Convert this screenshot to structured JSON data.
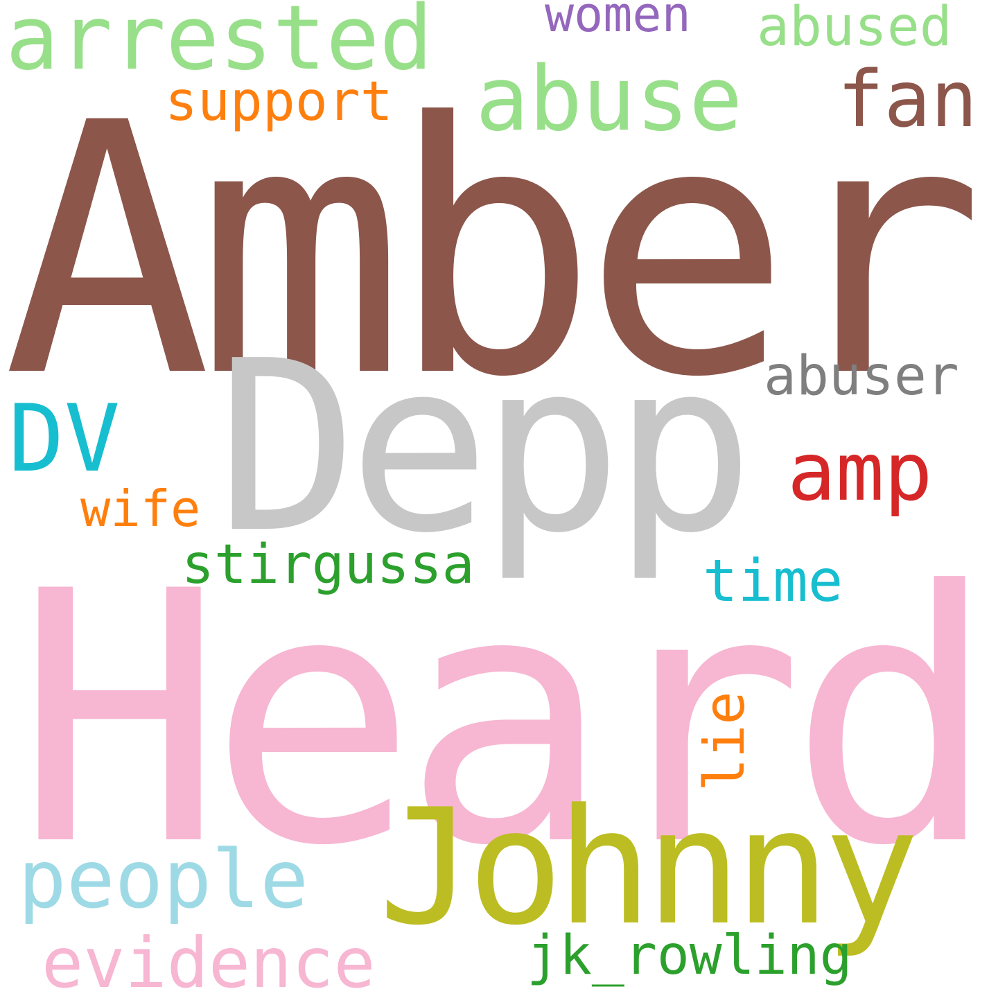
{
  "words": {
    "amber": {
      "text": "Amber",
      "color": "#8c564b"
    },
    "heard": {
      "text": "Heard",
      "color": "#f7b6d2"
    },
    "depp": {
      "text": "Depp",
      "color": "#c7c7c7"
    },
    "johnny": {
      "text": "Johnny",
      "color": "#bcbd22"
    },
    "arrested": {
      "text": "arrested",
      "color": "#98df8a"
    },
    "abuse": {
      "text": "abuse",
      "color": "#98df8a"
    },
    "fan": {
      "text": "fan",
      "color": "#8c564b"
    },
    "support": {
      "text": "support",
      "color": "#ff7f0e"
    },
    "women": {
      "text": "women",
      "color": "#9467bd"
    },
    "abused": {
      "text": "abused",
      "color": "#98df8a"
    },
    "abuser": {
      "text": "abuser",
      "color": "#7f7f7f"
    },
    "dv": {
      "text": "DV",
      "color": "#17becf"
    },
    "amp": {
      "text": "amp",
      "color": "#d62728"
    },
    "wife": {
      "text": "wife",
      "color": "#ff7f0e"
    },
    "stirgussa": {
      "text": "stirgussa",
      "color": "#2ca02c"
    },
    "time": {
      "text": "time",
      "color": "#17becf"
    },
    "lie": {
      "text": "lie",
      "color": "#ff7f0e"
    },
    "people": {
      "text": "people",
      "color": "#9edae5"
    },
    "evidence": {
      "text": "evidence",
      "color": "#f7b6d2"
    },
    "jkrowling": {
      "text": "jk_rowling",
      "color": "#2ca02c"
    }
  }
}
